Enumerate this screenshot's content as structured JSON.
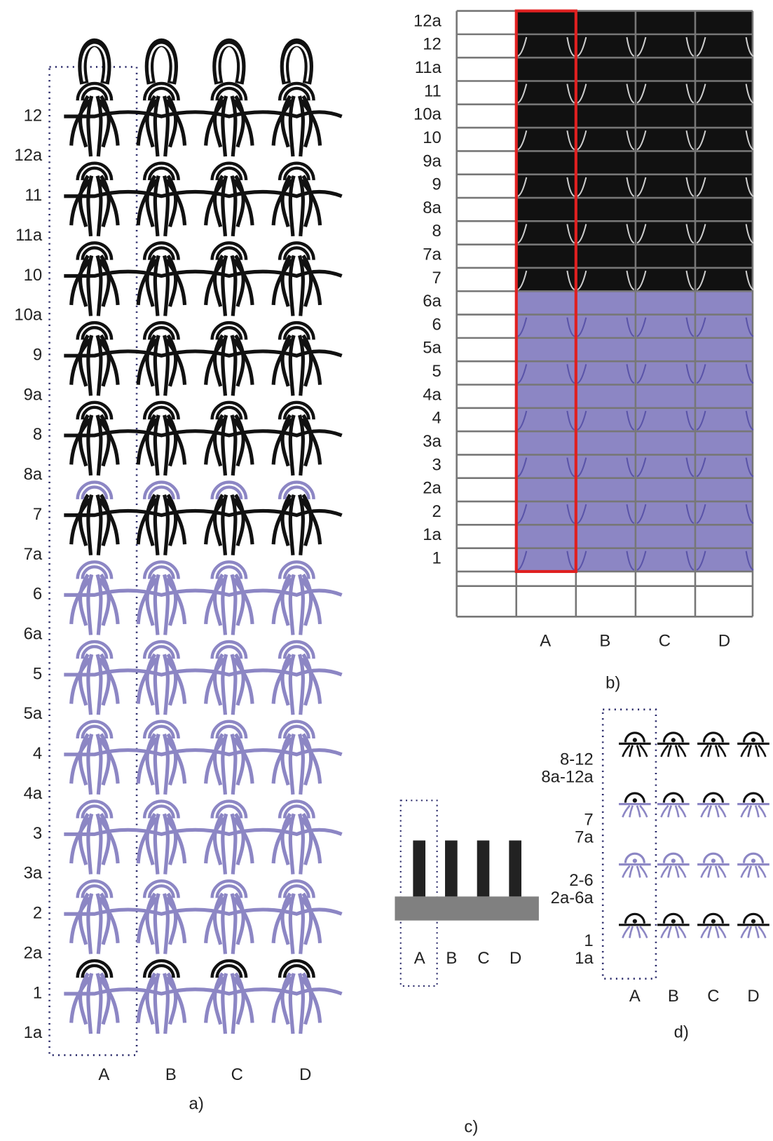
{
  "panel_a": {
    "rows": [
      "12",
      "12a",
      "11",
      "11a",
      "10",
      "10a",
      "9",
      "9a",
      "8",
      "8a",
      "7",
      "7a",
      "6",
      "6a",
      "5",
      "5a",
      "4",
      "4a",
      "3",
      "3a",
      "2",
      "2a",
      "1",
      "1a"
    ],
    "columns": [
      "A",
      "B",
      "C",
      "D"
    ],
    "caption": "a)"
  },
  "panel_b": {
    "rows": [
      "12a",
      "12",
      "11a",
      "11",
      "10a",
      "10",
      "9a",
      "9",
      "8a",
      "8",
      "7a",
      "7",
      "6a",
      "6",
      "5a",
      "5",
      "4a",
      "4",
      "3a",
      "3",
      "2a",
      "2",
      "1a",
      "1"
    ],
    "columns": [
      "A",
      "B",
      "C",
      "D"
    ],
    "caption": "b)"
  },
  "panel_c": {
    "columns": [
      "A",
      "B",
      "C",
      "D"
    ],
    "caption": "c)"
  },
  "panel_d": {
    "rows": [
      "8-12",
      "8a-12a",
      "7",
      "7a",
      "2-6",
      "2a-6a",
      "1",
      "1a"
    ],
    "columns": [
      "A",
      "B",
      "C",
      "D"
    ],
    "caption": "d)"
  }
}
